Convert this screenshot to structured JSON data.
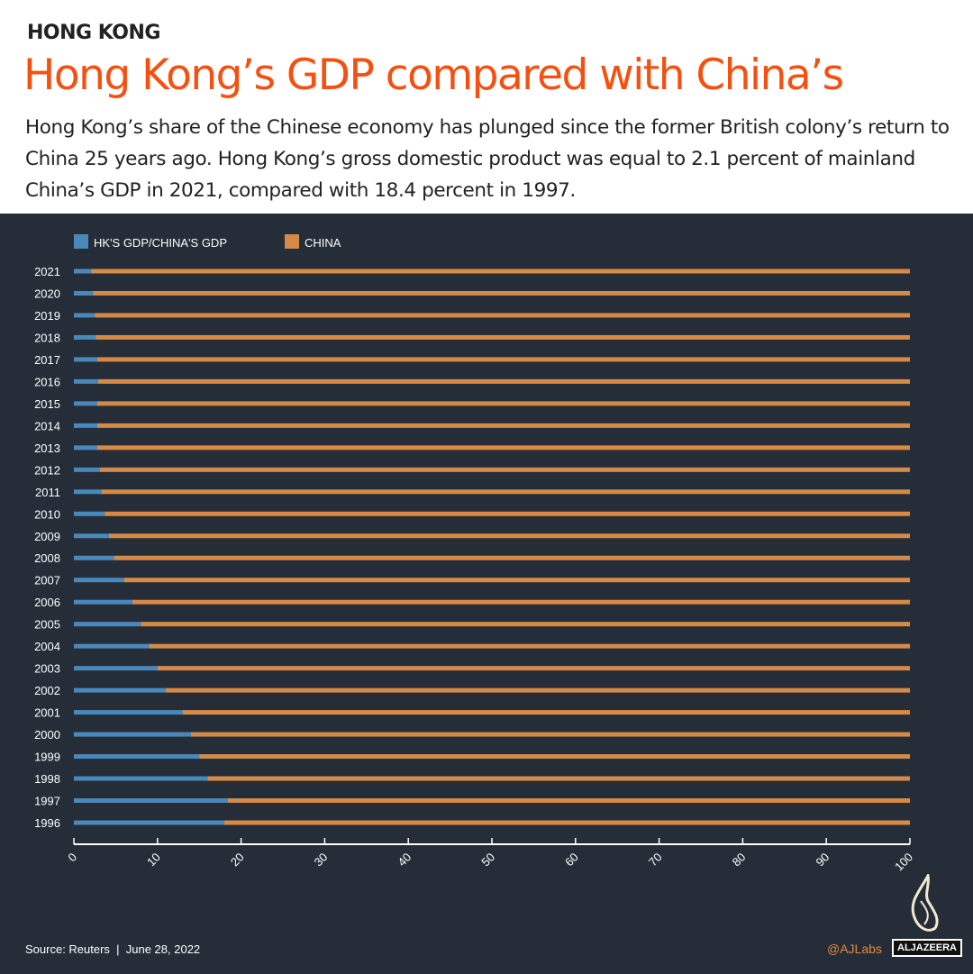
{
  "header": {
    "kicker": "HONG KONG",
    "title": "Hong Kong’s GDP compared with China’s",
    "subtitle": "Hong Kong’s share of the Chinese economy has plunged since the former British colony’s return to China 25 years ago. Hong Kong’s gross domestic product was equal to 2.1 percent of mainland China’s GDP in 2021, compared with 18.4 percent in 1997."
  },
  "chart_data": {
    "type": "bar",
    "orientation": "horizontal",
    "stacked": true,
    "categories": [
      "2021",
      "2020",
      "2019",
      "2018",
      "2017",
      "2016",
      "2015",
      "2014",
      "2013",
      "2012",
      "2011",
      "2010",
      "2009",
      "2008",
      "2007",
      "2006",
      "2005",
      "2004",
      "2003",
      "2002",
      "2001",
      "2000",
      "1999",
      "1998",
      "1997",
      "1996"
    ],
    "series": [
      {
        "name": "HK'S GDP/CHINA'S GDP",
        "color": "#4a88bb",
        "values": [
          2.1,
          2.3,
          2.5,
          2.6,
          2.8,
          2.9,
          2.8,
          2.8,
          2.8,
          3.1,
          3.3,
          3.7,
          4.2,
          4.8,
          6.0,
          7.0,
          8.0,
          9.0,
          10.0,
          11.0,
          13.0,
          14.0,
          15.0,
          16.0,
          18.4,
          18.0
        ]
      },
      {
        "name": "CHINA",
        "color": "#d58a47",
        "values": [
          97.9,
          97.7,
          97.5,
          97.4,
          97.2,
          97.1,
          97.2,
          97.2,
          97.2,
          96.9,
          96.7,
          96.3,
          95.8,
          95.2,
          94.0,
          93.0,
          92.0,
          91.0,
          90.0,
          89.0,
          87.0,
          86.0,
          85.0,
          84.0,
          81.6,
          82.0
        ]
      }
    ],
    "xlim": [
      0,
      100
    ],
    "xticks": [
      "0",
      "10",
      "20",
      "30",
      "40",
      "50",
      "60",
      "70",
      "80",
      "90",
      "100"
    ],
    "grid": false,
    "legend": "top-left"
  },
  "footer": {
    "source": "Source: Reuters  |  June 28, 2022",
    "handle": "@AJLabs",
    "brand": "ALJAZEERA"
  }
}
